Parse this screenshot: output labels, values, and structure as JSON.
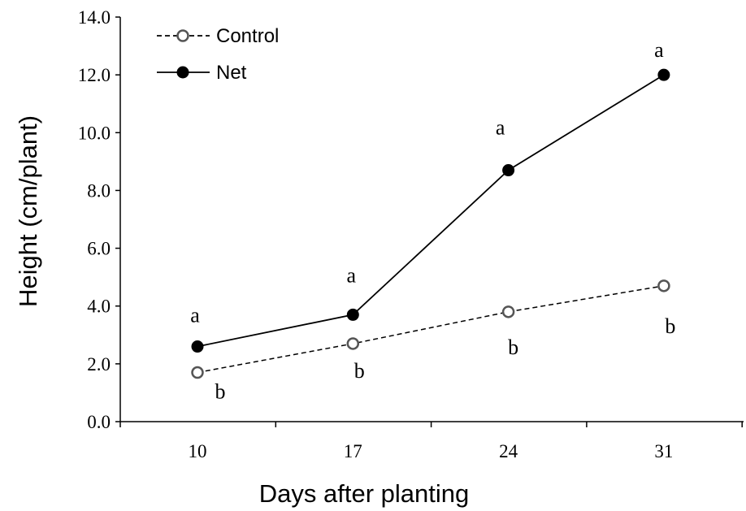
{
  "chart_data": {
    "type": "line",
    "title": "",
    "xlabel": "Days after planting",
    "ylabel": "Height (cm/plant)",
    "categories": [
      "10",
      "17",
      "24",
      "31"
    ],
    "ylim": [
      0,
      14
    ],
    "y_ticks": [
      "0.0",
      "2.0",
      "4.0",
      "6.0",
      "8.0",
      "10.0",
      "12.0",
      "14.0"
    ],
    "grid": false,
    "legend_position": "top-left",
    "series": [
      {
        "name": "Control",
        "values": [
          1.7,
          2.7,
          3.8,
          4.7
        ],
        "line_style": "dashed",
        "marker": "open-circle",
        "color": "#000000",
        "significance_labels": [
          "b",
          "b",
          "b",
          "b"
        ]
      },
      {
        "name": "Net",
        "values": [
          2.6,
          3.7,
          8.7,
          12.0
        ],
        "line_style": "solid",
        "marker": "filled-circle",
        "color": "#000000",
        "significance_labels": [
          "a",
          "a",
          "a",
          "a"
        ]
      }
    ]
  }
}
